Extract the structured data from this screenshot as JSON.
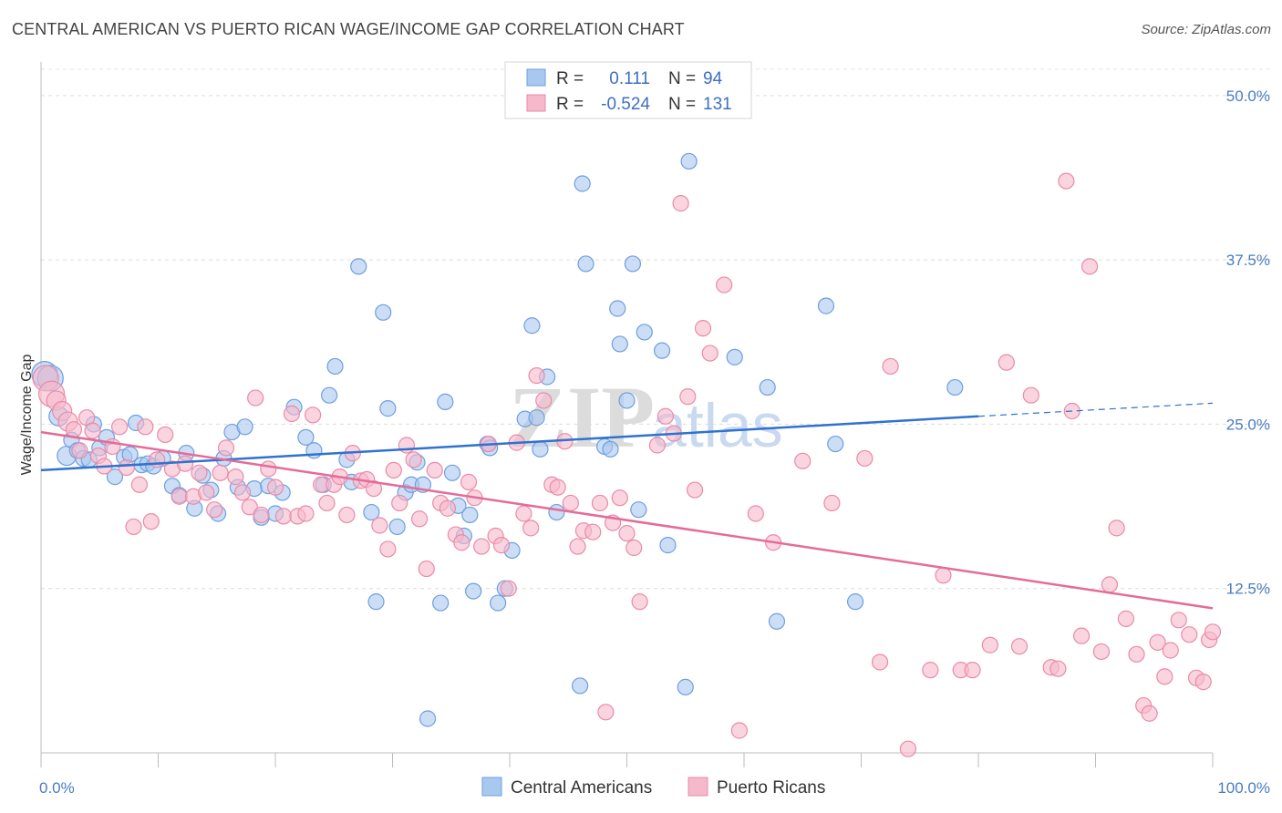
{
  "title": "CENTRAL AMERICAN VS PUERTO RICAN WAGE/INCOME GAP CORRELATION CHART",
  "source": "Source: ZipAtlas.com",
  "watermark": {
    "zip": "ZIP",
    "atlas": "atlas"
  },
  "colors": {
    "blue_fill": "#a9c8ef",
    "blue_stroke": "#6f9ee0",
    "blue_line": "#2f72cf",
    "pink_fill": "#f6b9cc",
    "pink_stroke": "#ea8aa8",
    "pink_line": "#e56b98",
    "tick_text": "#4a7bc4"
  },
  "legend": {
    "rows": [
      {
        "r_label": "R =",
        "r_value": "0.111",
        "n_label": "N =",
        "n_value": "94"
      },
      {
        "r_label": "R =",
        "r_value": "-0.524",
        "n_label": "N =",
        "n_value": "131"
      }
    ]
  },
  "chart_data": {
    "type": "scatter",
    "title": "CENTRAL AMERICAN VS PUERTO RICAN WAGE/INCOME GAP CORRELATION CHART",
    "xlabel": "",
    "ylabel": "Wage/Income Gap",
    "xlim": [
      0,
      100
    ],
    "ylim": [
      0,
      52
    ],
    "x_tick_labels": [
      "0.0%",
      "100.0%"
    ],
    "y_ticks": [
      12.5,
      25.0,
      37.5,
      50.0
    ],
    "y_tick_labels": [
      "12.5%",
      "25.0%",
      "37.5%",
      "50.0%"
    ],
    "grid": true,
    "legend_position": "top-center",
    "series": [
      {
        "name": "Central Americans",
        "color": "#a9c8ef",
        "trend": {
          "x": [
            0,
            80
          ],
          "y": [
            21.5,
            25.6
          ],
          "dashed_extension_to": [
            100,
            26.6
          ]
        },
        "points": [
          [
            0.3,
            28.8
          ],
          [
            0.8,
            28.5
          ],
          [
            1.5,
            25.6
          ],
          [
            2.2,
            22.6
          ],
          [
            2.6,
            23.8
          ],
          [
            3.1,
            23.0
          ],
          [
            3.6,
            22.4
          ],
          [
            4.1,
            22.3
          ],
          [
            4.5,
            25.0
          ],
          [
            5.0,
            23.2
          ],
          [
            5.6,
            24.0
          ],
          [
            6.3,
            21.0
          ],
          [
            7.1,
            22.5
          ],
          [
            7.6,
            22.7
          ],
          [
            8.1,
            25.1
          ],
          [
            8.6,
            21.9
          ],
          [
            9.1,
            22.0
          ],
          [
            9.6,
            21.8
          ],
          [
            10.4,
            22.4
          ],
          [
            11.2,
            20.3
          ],
          [
            11.8,
            19.6
          ],
          [
            12.4,
            22.8
          ],
          [
            13.1,
            18.6
          ],
          [
            13.8,
            21.1
          ],
          [
            14.5,
            20.0
          ],
          [
            15.1,
            18.2
          ],
          [
            15.6,
            22.4
          ],
          [
            16.3,
            24.4
          ],
          [
            16.8,
            20.2
          ],
          [
            17.4,
            24.8
          ],
          [
            18.2,
            20.1
          ],
          [
            18.8,
            17.9
          ],
          [
            19.4,
            20.3
          ],
          [
            20.0,
            18.2
          ],
          [
            20.6,
            19.8
          ],
          [
            21.6,
            26.3
          ],
          [
            22.6,
            24.0
          ],
          [
            23.3,
            23.0
          ],
          [
            24.1,
            20.4
          ],
          [
            24.6,
            27.2
          ],
          [
            25.1,
            29.4
          ],
          [
            26.1,
            22.3
          ],
          [
            26.5,
            20.6
          ],
          [
            27.1,
            37.0
          ],
          [
            28.2,
            18.3
          ],
          [
            28.6,
            11.5
          ],
          [
            29.2,
            33.5
          ],
          [
            29.6,
            26.2
          ],
          [
            30.4,
            17.2
          ],
          [
            31.1,
            19.8
          ],
          [
            31.6,
            20.4
          ],
          [
            32.1,
            22.1
          ],
          [
            32.6,
            20.4
          ],
          [
            34.1,
            11.4
          ],
          [
            34.5,
            26.7
          ],
          [
            35.1,
            21.3
          ],
          [
            35.6,
            18.8
          ],
          [
            36.1,
            16.5
          ],
          [
            36.6,
            18.1
          ],
          [
            36.9,
            12.3
          ],
          [
            38.1,
            23.5
          ],
          [
            38.3,
            23.2
          ],
          [
            39.0,
            11.4
          ],
          [
            39.6,
            12.5
          ],
          [
            40.2,
            15.4
          ],
          [
            41.3,
            25.4
          ],
          [
            41.9,
            32.5
          ],
          [
            42.6,
            23.1
          ],
          [
            42.3,
            25.5
          ],
          [
            43.2,
            28.6
          ],
          [
            44.0,
            18.3
          ],
          [
            46.5,
            37.2
          ],
          [
            46.0,
            5.1
          ],
          [
            46.2,
            43.3
          ],
          [
            48.1,
            23.3
          ],
          [
            48.6,
            23.1
          ],
          [
            49.2,
            33.8
          ],
          [
            49.4,
            31.1
          ],
          [
            50.0,
            26.8
          ],
          [
            50.5,
            37.2
          ],
          [
            51.0,
            18.5
          ],
          [
            51.5,
            32.0
          ],
          [
            53.0,
            30.6
          ],
          [
            53.5,
            15.8
          ],
          [
            55.0,
            5.0
          ],
          [
            55.3,
            45.0
          ],
          [
            59.2,
            30.1
          ],
          [
            62.0,
            27.8
          ],
          [
            62.8,
            10.0
          ],
          [
            67.0,
            34.0
          ],
          [
            67.8,
            23.5
          ],
          [
            69.5,
            11.5
          ],
          [
            78.0,
            27.8
          ],
          [
            33.0,
            2.6
          ]
        ]
      },
      {
        "name": "Puerto Ricans",
        "color": "#f6b9cc",
        "trend": {
          "x": [
            0,
            100
          ],
          "y": [
            24.4,
            11.0
          ]
        },
        "points": [
          [
            0.4,
            28.5
          ],
          [
            0.9,
            27.3
          ],
          [
            1.3,
            26.8
          ],
          [
            1.8,
            26.0
          ],
          [
            2.3,
            25.2
          ],
          [
            2.8,
            24.6
          ],
          [
            3.3,
            23.0
          ],
          [
            3.9,
            25.5
          ],
          [
            4.4,
            24.5
          ],
          [
            4.9,
            22.6
          ],
          [
            5.4,
            21.8
          ],
          [
            6.1,
            23.3
          ],
          [
            6.7,
            24.8
          ],
          [
            7.3,
            21.7
          ],
          [
            7.9,
            17.2
          ],
          [
            8.4,
            20.4
          ],
          [
            8.9,
            24.8
          ],
          [
            9.4,
            17.6
          ],
          [
            9.9,
            22.3
          ],
          [
            10.6,
            24.2
          ],
          [
            11.2,
            21.6
          ],
          [
            11.8,
            19.5
          ],
          [
            12.3,
            22.0
          ],
          [
            13.0,
            19.5
          ],
          [
            13.5,
            21.3
          ],
          [
            14.1,
            19.8
          ],
          [
            14.8,
            18.5
          ],
          [
            15.3,
            21.3
          ],
          [
            15.8,
            23.2
          ],
          [
            16.6,
            21.0
          ],
          [
            17.2,
            19.8
          ],
          [
            17.8,
            18.7
          ],
          [
            18.3,
            27.0
          ],
          [
            18.8,
            18.1
          ],
          [
            19.4,
            21.6
          ],
          [
            20.0,
            20.2
          ],
          [
            20.7,
            18.0
          ],
          [
            21.4,
            25.8
          ],
          [
            21.9,
            18.0
          ],
          [
            22.6,
            18.2
          ],
          [
            23.2,
            25.7
          ],
          [
            23.9,
            20.4
          ],
          [
            24.4,
            19.0
          ],
          [
            25.0,
            20.4
          ],
          [
            25.5,
            21.0
          ],
          [
            26.1,
            18.1
          ],
          [
            26.6,
            22.8
          ],
          [
            27.3,
            20.7
          ],
          [
            27.8,
            20.8
          ],
          [
            28.4,
            20.1
          ],
          [
            28.9,
            17.3
          ],
          [
            29.6,
            15.5
          ],
          [
            30.1,
            21.5
          ],
          [
            30.6,
            19.0
          ],
          [
            31.2,
            23.4
          ],
          [
            31.8,
            22.3
          ],
          [
            32.3,
            17.8
          ],
          [
            32.9,
            14.0
          ],
          [
            33.6,
            21.5
          ],
          [
            34.1,
            19.0
          ],
          [
            34.7,
            18.6
          ],
          [
            35.4,
            16.6
          ],
          [
            35.9,
            16.0
          ],
          [
            36.5,
            20.6
          ],
          [
            37.0,
            19.4
          ],
          [
            37.6,
            15.7
          ],
          [
            38.2,
            23.5
          ],
          [
            38.8,
            16.5
          ],
          [
            39.3,
            15.8
          ],
          [
            39.9,
            12.5
          ],
          [
            40.6,
            23.6
          ],
          [
            41.2,
            18.2
          ],
          [
            41.8,
            17.1
          ],
          [
            42.3,
            28.7
          ],
          [
            42.9,
            26.8
          ],
          [
            43.6,
            20.4
          ],
          [
            44.1,
            20.2
          ],
          [
            44.7,
            23.7
          ],
          [
            45.2,
            19.0
          ],
          [
            45.8,
            15.7
          ],
          [
            46.3,
            16.9
          ],
          [
            47.1,
            16.8
          ],
          [
            47.7,
            19.0
          ],
          [
            48.2,
            3.1
          ],
          [
            48.8,
            17.5
          ],
          [
            49.4,
            19.4
          ],
          [
            50.0,
            16.7
          ],
          [
            50.6,
            15.6
          ],
          [
            51.1,
            11.5
          ],
          [
            52.6,
            23.4
          ],
          [
            53.3,
            25.6
          ],
          [
            54.0,
            24.3
          ],
          [
            54.6,
            41.8
          ],
          [
            55.2,
            27.1
          ],
          [
            55.8,
            20.0
          ],
          [
            56.5,
            32.3
          ],
          [
            57.1,
            30.4
          ],
          [
            58.3,
            35.6
          ],
          [
            59.6,
            1.7
          ],
          [
            61.0,
            18.2
          ],
          [
            62.5,
            16.0
          ],
          [
            65.0,
            22.2
          ],
          [
            67.5,
            19.0
          ],
          [
            70.3,
            22.4
          ],
          [
            71.6,
            6.9
          ],
          [
            72.5,
            29.4
          ],
          [
            74.0,
            0.3
          ],
          [
            75.9,
            6.3
          ],
          [
            77.0,
            13.5
          ],
          [
            78.5,
            6.3
          ],
          [
            79.5,
            6.3
          ],
          [
            81.0,
            8.2
          ],
          [
            82.4,
            29.7
          ],
          [
            83.5,
            8.1
          ],
          [
            84.5,
            27.2
          ],
          [
            86.2,
            6.5
          ],
          [
            86.8,
            6.4
          ],
          [
            87.5,
            43.5
          ],
          [
            88.0,
            26.0
          ],
          [
            88.8,
            8.9
          ],
          [
            89.5,
            37.0
          ],
          [
            90.5,
            7.7
          ],
          [
            91.2,
            12.8
          ],
          [
            91.8,
            17.1
          ],
          [
            92.6,
            10.2
          ],
          [
            93.5,
            7.5
          ],
          [
            94.1,
            3.6
          ],
          [
            94.6,
            3.0
          ],
          [
            95.3,
            8.4
          ],
          [
            95.9,
            5.8
          ],
          [
            96.4,
            7.8
          ],
          [
            97.1,
            10.1
          ],
          [
            98.0,
            9.0
          ],
          [
            98.6,
            5.7
          ],
          [
            99.2,
            5.4
          ],
          [
            99.7,
            8.6
          ],
          [
            100.0,
            9.2
          ]
        ]
      }
    ]
  },
  "axes": {
    "ylabel": "Wage/Income Gap",
    "x_left": "0.0%",
    "x_right": "100.0%"
  },
  "bottom_legend": [
    {
      "name": "Central Americans"
    },
    {
      "name": "Puerto Ricans"
    }
  ]
}
